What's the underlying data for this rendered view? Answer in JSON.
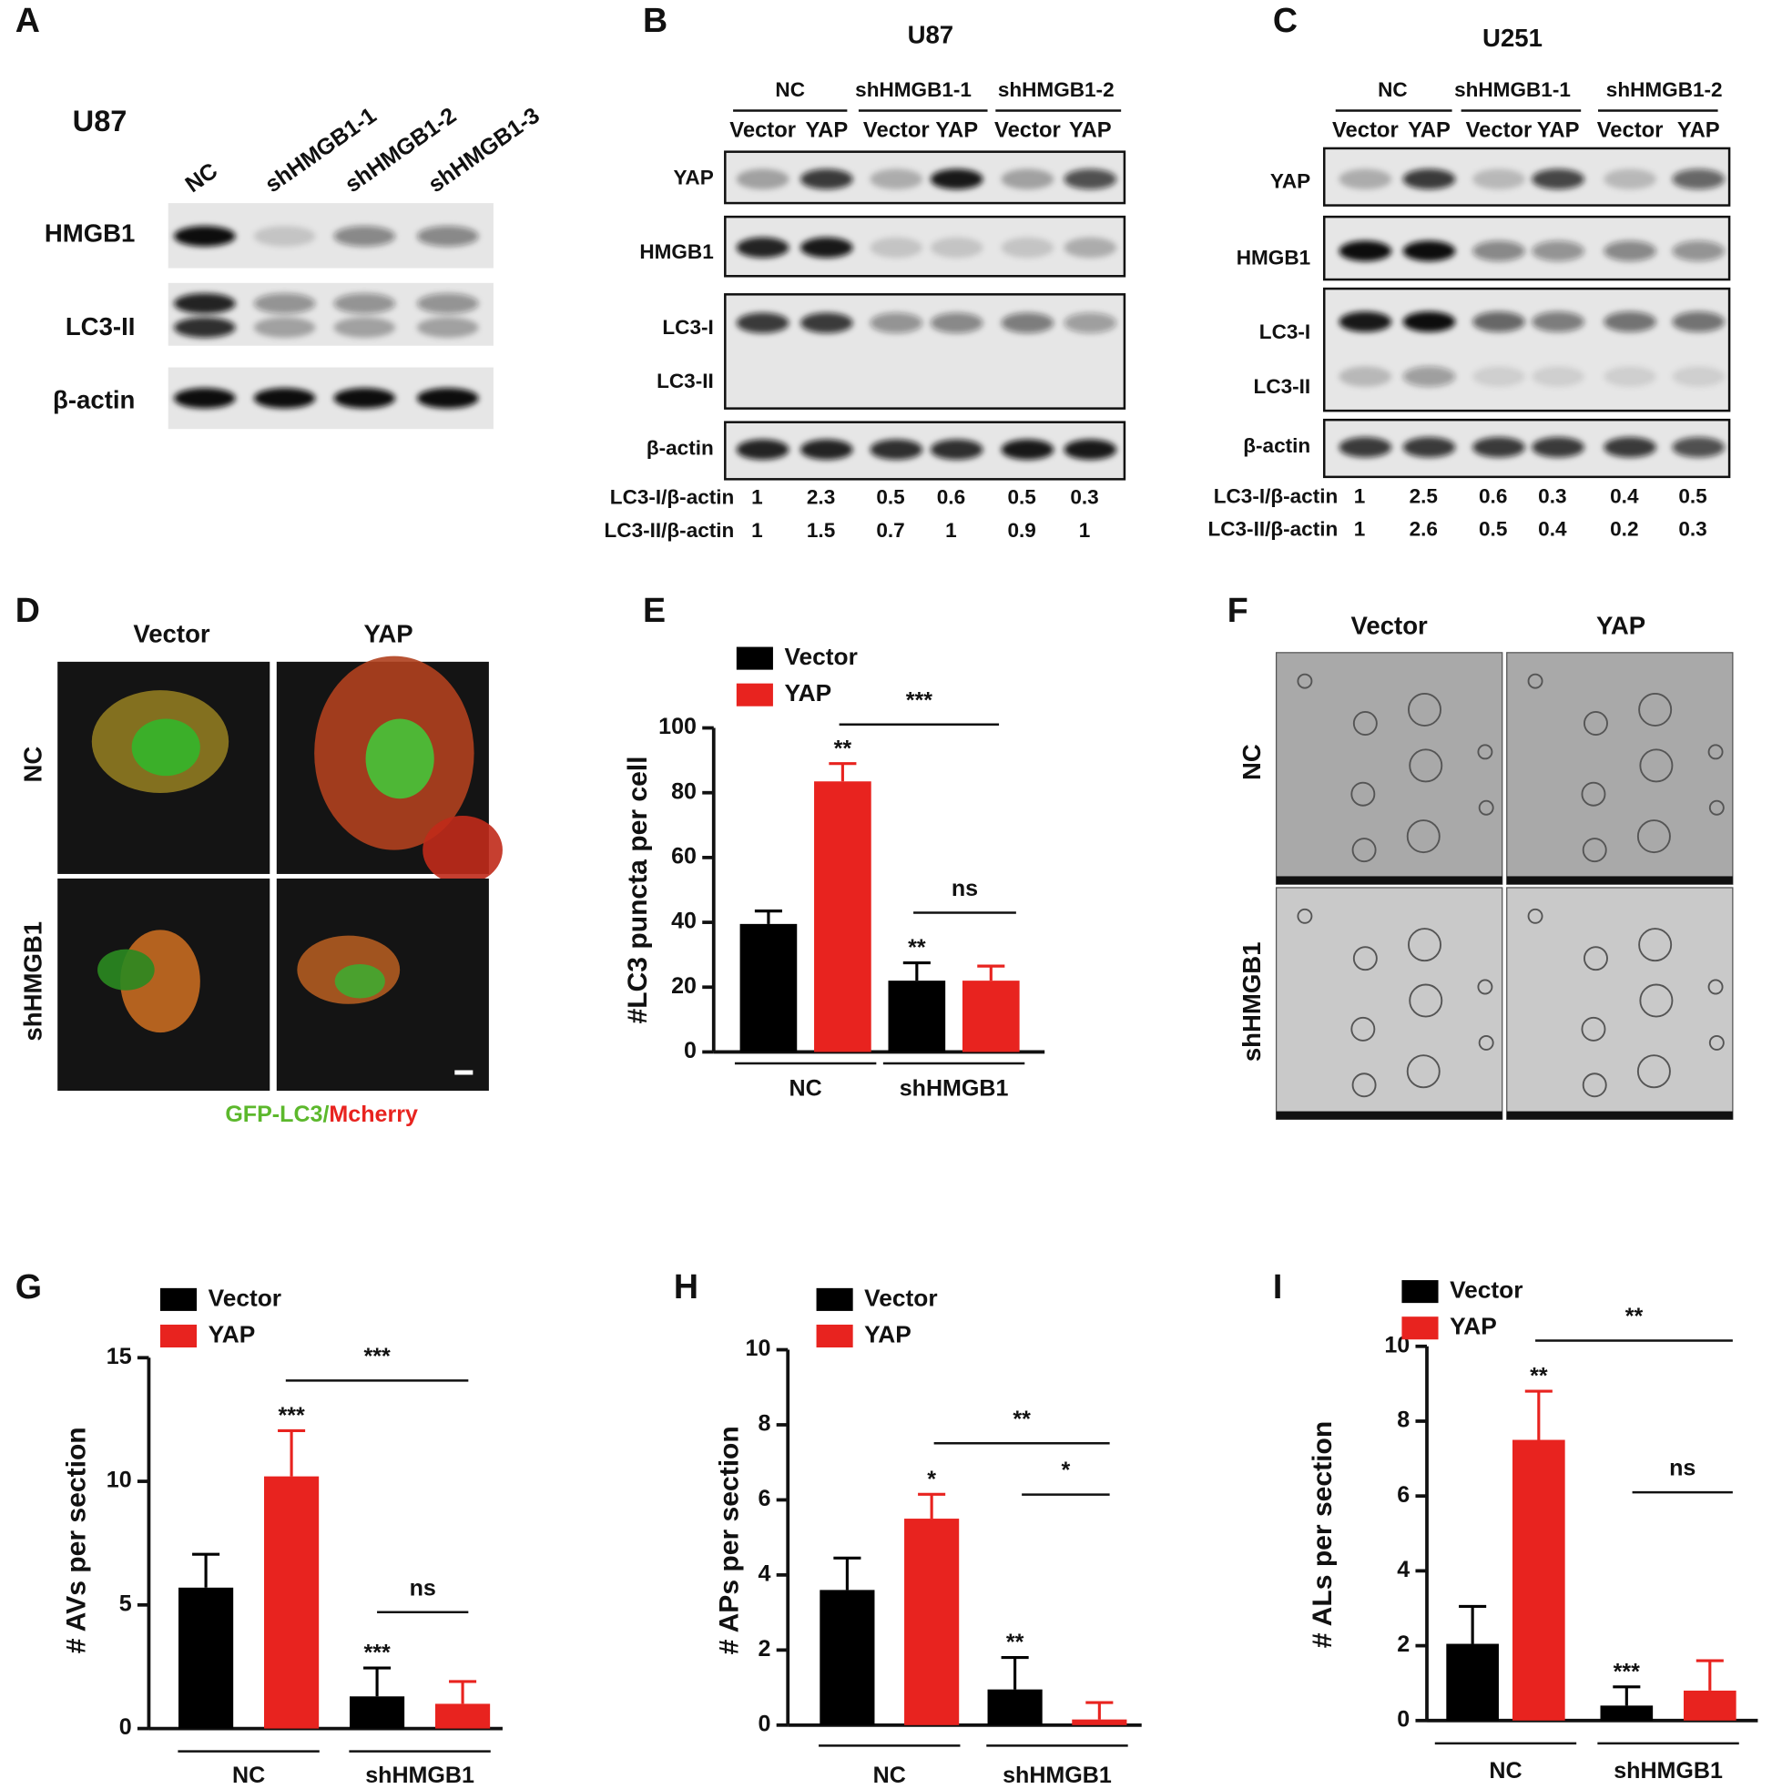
{
  "panel_labels": [
    "A",
    "B",
    "C",
    "D",
    "E",
    "F",
    "G",
    "H",
    "I"
  ],
  "blot_a": {
    "cell_line": "U87",
    "lanes": [
      "NC",
      "shHMGB1-1",
      "shHMGB1-2",
      "shHMGB1-3"
    ],
    "rows": [
      "HMGB1",
      "LC3-II",
      "β-actin"
    ]
  },
  "blot_b": {
    "title": "U87",
    "groups": [
      "NC",
      "shHMGB1-1",
      "shHMGB1-2"
    ],
    "lanes": [
      "Vector",
      "YAP",
      "Vector",
      "YAP",
      "Vector",
      "YAP"
    ],
    "rows": [
      "YAP",
      "HMGB1",
      "LC3-I",
      "LC3-II",
      "β-actin"
    ],
    "quant": [
      {
        "label": "LC3-I/β-actin",
        "values": [
          1,
          2.3,
          0.5,
          0.6,
          0.5,
          0.3
        ]
      },
      {
        "label": "LC3-II/β-actin",
        "values": [
          1,
          1.5,
          0.7,
          1,
          0.9,
          1
        ]
      }
    ]
  },
  "blot_c": {
    "title": "U251",
    "groups": [
      "NC",
      "shHMGB1-1",
      "shHMGB1-2"
    ],
    "lanes": [
      "Vector",
      "YAP",
      "Vector",
      "YAP",
      "Vector",
      "YAP"
    ],
    "rows": [
      "YAP",
      "HMGB1",
      "LC3-I",
      "LC3-II",
      "β-actin"
    ],
    "quant": [
      {
        "label": "LC3-I/β-actin",
        "values": [
          1,
          2.5,
          0.6,
          0.3,
          0.4,
          0.5
        ]
      },
      {
        "label": "LC3-II/β-actin",
        "values": [
          1,
          2.6,
          0.5,
          0.4,
          0.2,
          0.3
        ]
      }
    ]
  },
  "panel_d": {
    "columns": [
      "Vector",
      "YAP"
    ],
    "rows": [
      "NC",
      "shHMGB1"
    ],
    "caption": [
      "GFP-LC3/",
      "Mcherry"
    ]
  },
  "panel_f": {
    "columns": [
      "Vector",
      "YAP"
    ],
    "rows": [
      "NC",
      "shHMGB1"
    ]
  },
  "chart_data": [
    {
      "type": "bar",
      "categories": [
        "NC",
        "shHMGB1"
      ],
      "ylabel": "#LC3 puncta per cell",
      "ylim": [
        0,
        100
      ],
      "yticks": [
        0,
        20,
        40,
        60,
        80,
        100
      ],
      "series": [
        {
          "name": "Vector",
          "color": "#000000",
          "values": [
            39.5,
            22
          ],
          "errors": [
            4,
            5.5
          ],
          "significance": [
            null,
            "**"
          ]
        },
        {
          "name": "YAP",
          "color": "#e8231f",
          "values": [
            83.5,
            22
          ],
          "errors": [
            5.5,
            4.5
          ],
          "significance": [
            "**",
            null
          ]
        }
      ],
      "comparisons": [
        "***",
        "ns"
      ]
    },
    {
      "type": "bar",
      "categories": [
        "NC",
        "shHMGB1"
      ],
      "ylabel": "# AVs per section",
      "ylim": [
        0,
        15
      ],
      "yticks": [
        0,
        5,
        10,
        15
      ],
      "series": [
        {
          "name": "Vector",
          "color": "#000000",
          "values": [
            5.7,
            1.3
          ],
          "errors": [
            1.35,
            1.15
          ],
          "significance": [
            null,
            "***"
          ]
        },
        {
          "name": "YAP",
          "color": "#e8231f",
          "values": [
            10.2,
            1.0
          ],
          "errors": [
            1.85,
            0.9
          ],
          "significance": [
            "***",
            null
          ]
        }
      ],
      "comparisons": [
        "***",
        "ns"
      ]
    },
    {
      "type": "bar",
      "categories": [
        "NC",
        "shHMGB1"
      ],
      "ylabel": "# APs per section",
      "ylim": [
        0,
        10
      ],
      "yticks": [
        0,
        2,
        4,
        6,
        8,
        10
      ],
      "series": [
        {
          "name": "Vector",
          "color": "#000000",
          "values": [
            3.6,
            0.95
          ],
          "errors": [
            0.85,
            0.85
          ],
          "significance": [
            null,
            "**"
          ]
        },
        {
          "name": "YAP",
          "color": "#e8231f",
          "values": [
            5.5,
            0.15
          ],
          "errors": [
            0.65,
            0.45
          ],
          "significance": [
            "*",
            null
          ]
        }
      ],
      "comparisons": [
        "**",
        "*"
      ]
    },
    {
      "type": "bar",
      "categories": [
        "NC",
        "shHMGB1"
      ],
      "ylabel": "# ALs per section",
      "ylim": [
        0,
        10
      ],
      "yticks": [
        0,
        2,
        4,
        6,
        8,
        10
      ],
      "series": [
        {
          "name": "Vector",
          "color": "#000000",
          "values": [
            2.05,
            0.4
          ],
          "errors": [
            1.0,
            0.5
          ],
          "significance": [
            null,
            "***"
          ]
        },
        {
          "name": "YAP",
          "color": "#e8231f",
          "values": [
            7.5,
            0.8
          ],
          "errors": [
            1.3,
            0.8
          ],
          "significance": [
            "**",
            null
          ]
        }
      ],
      "comparisons": [
        "**",
        "ns"
      ]
    }
  ]
}
